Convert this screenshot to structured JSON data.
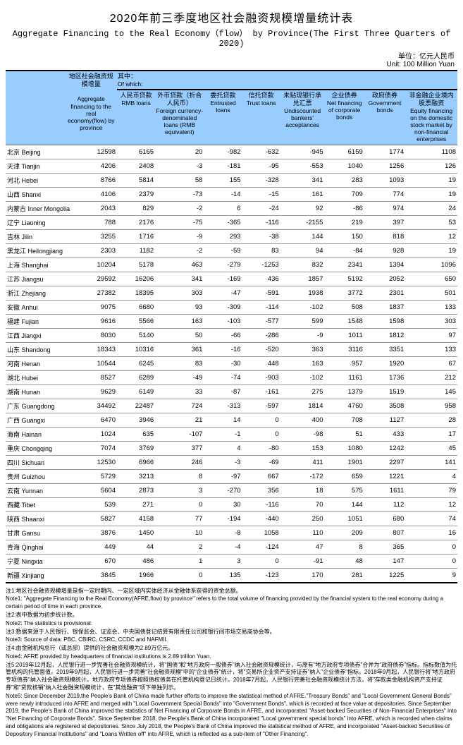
{
  "title_cn": "2020年前三季度地区社会融资规模增量统计表",
  "title_en": "Aggregate Financing to the Real Economy（flow） by Province(The First Three Quarters of 2020)",
  "unit_cn": "单位：亿元人民币",
  "unit_en": "Unit: 100 Million Yuan",
  "header": {
    "prov": "",
    "col1_cn": "地区社会融资规模增量",
    "col1_en": "Aggregate financing to the real economy(flow) by province",
    "ofwhich_cn": "其中：",
    "ofwhich_en": "Of which:",
    "col2_cn": "人民币贷款",
    "col2_en": "RMB loans",
    "col3_cn": "外币贷款（折合人民币）",
    "col3_en": "Foreign currency-denominated loans (RMB equivalent)",
    "col4_cn": "委托贷款",
    "col4_en": "Entrusted loans",
    "col5_cn": "信托贷款",
    "col5_en": "Trust loans",
    "col6_cn": "未贴现银行承兑汇票",
    "col6_en": "Undiscounted bankers' acceptances",
    "col7_cn": "企业债券",
    "col7_en": "Net financing of corporate bonds",
    "col8_cn": "政府债券",
    "col8_en": "Government bonds",
    "col9_cn": "非金融企业境内股票融资",
    "col9_en": "Equity financing on the domestic stock market by non-financial enterprises"
  },
  "rows": [
    {
      "p": "北京 Beijing",
      "v": [
        "12598",
        "6165",
        "20",
        "-982",
        "-632",
        "-945",
        "6159",
        "1774",
        "1108"
      ]
    },
    {
      "p": "天津 Tianjin",
      "v": [
        "4206",
        "2408",
        "-3",
        "-181",
        "-95",
        "-553",
        "1040",
        "1256",
        "126"
      ]
    },
    {
      "p": "河北 Hebei",
      "v": [
        "8766",
        "5814",
        "58",
        "155",
        "-328",
        "341",
        "283",
        "1093",
        "19"
      ]
    },
    {
      "p": "山西 Shanxi",
      "v": [
        "4106",
        "2379",
        "-73",
        "-14",
        "-15",
        "161",
        "709",
        "774",
        "19"
      ]
    },
    {
      "p": "内蒙古 Inner Mongolia",
      "v": [
        "2043",
        "829",
        "-2",
        "6",
        "-24",
        "92",
        "-86",
        "974",
        "24"
      ]
    },
    {
      "p": "辽宁 Liaoning",
      "v": [
        "788",
        "2176",
        "-75",
        "-365",
        "-116",
        "-2155",
        "219",
        "397",
        "53"
      ]
    },
    {
      "p": "吉林 Jilin",
      "v": [
        "3255",
        "1716",
        "-9",
        "293",
        "-38",
        "144",
        "150",
        "818",
        "12"
      ]
    },
    {
      "p": "黑龙江 Heilongjiang",
      "v": [
        "2303",
        "1182",
        "-2",
        "-59",
        "83",
        "94",
        "-84",
        "928",
        "19"
      ]
    },
    {
      "p": "上海 Shanghai",
      "v": [
        "10204",
        "5178",
        "463",
        "-279",
        "-1253",
        "832",
        "2341",
        "1394",
        "1096"
      ]
    },
    {
      "p": "江苏 Jiangsu",
      "v": [
        "29592",
        "16206",
        "341",
        "-169",
        "436",
        "1857",
        "5192",
        "2052",
        "650"
      ]
    },
    {
      "p": "浙江 Zhejiang",
      "v": [
        "27382",
        "18395",
        "303",
        "-47",
        "-591",
        "1938",
        "3772",
        "2301",
        "501"
      ]
    },
    {
      "p": "安徽 Anhui",
      "v": [
        "9075",
        "6680",
        "93",
        "-309",
        "-114",
        "-102",
        "508",
        "1837",
        "133"
      ]
    },
    {
      "p": "福建 Fujian",
      "v": [
        "9616",
        "5566",
        "163",
        "-103",
        "-577",
        "599",
        "1548",
        "1598",
        "303"
      ]
    },
    {
      "p": "江西 Jiangxi",
      "v": [
        "8030",
        "5140",
        "50",
        "-66",
        "-286",
        "-9",
        "1011",
        "1812",
        "97"
      ]
    },
    {
      "p": "山东 Shandong",
      "v": [
        "18343",
        "10316",
        "361",
        "-16",
        "-520",
        "363",
        "3116",
        "3351",
        "133"
      ]
    },
    {
      "p": "河南 Henan",
      "v": [
        "10544",
        "6245",
        "83",
        "-30",
        "448",
        "163",
        "957",
        "1920",
        "67"
      ]
    },
    {
      "p": "湖北 Hubei",
      "v": [
        "8527",
        "6289",
        "-49",
        "-74",
        "-903",
        "-102",
        "1161",
        "1736",
        "212"
      ]
    },
    {
      "p": "湖南 Hunan",
      "v": [
        "9629",
        "6149",
        "33",
        "-87",
        "-161",
        "275",
        "1379",
        "1519",
        "145"
      ]
    },
    {
      "p": "广东 Guangdong",
      "v": [
        "34492",
        "22487",
        "724",
        "-313",
        "-597",
        "1814",
        "4760",
        "3508",
        "958"
      ]
    },
    {
      "p": "广西 Guangxi",
      "v": [
        "6470",
        "3946",
        "21",
        "14",
        "0",
        "400",
        "708",
        "1127",
        "28"
      ]
    },
    {
      "p": "海南 Hainan",
      "v": [
        "1024",
        "635",
        "-107",
        "-1",
        "0",
        "-98",
        "51",
        "433",
        "17"
      ]
    },
    {
      "p": "重庆 Chongqing",
      "v": [
        "7074",
        "3769",
        "377",
        "4",
        "-80",
        "153",
        "1080",
        "1242",
        "45"
      ]
    },
    {
      "p": "四川 Sichuan",
      "v": [
        "12530",
        "6966",
        "246",
        "-3",
        "-69",
        "411",
        "1901",
        "2297",
        "141"
      ]
    },
    {
      "p": "贵州 Guizhou",
      "v": [
        "5729",
        "3213",
        "8",
        "-97",
        "667",
        "-172",
        "659",
        "1221",
        "4"
      ]
    },
    {
      "p": "云南 Yunnan",
      "v": [
        "5604",
        "2873",
        "3",
        "-270",
        "356",
        "18",
        "575",
        "1611",
        "79"
      ]
    },
    {
      "p": "西藏 Tibet",
      "v": [
        "539",
        "271",
        "0",
        "30",
        "-116",
        "70",
        "144",
        "112",
        "12"
      ]
    },
    {
      "p": "陕西 Shaanxi",
      "v": [
        "5827",
        "4158",
        "77",
        "-194",
        "-440",
        "250",
        "1051",
        "680",
        "74"
      ]
    },
    {
      "p": "甘肃 Gansu",
      "v": [
        "3876",
        "1450",
        "10",
        "-8",
        "1058",
        "110",
        "209",
        "807",
        "16"
      ]
    },
    {
      "p": "青海 Qinghai",
      "v": [
        "449",
        "44",
        "2",
        "-4",
        "-124",
        "47",
        "8",
        "365",
        "0"
      ]
    },
    {
      "p": "宁夏 Ningxia",
      "v": [
        "670",
        "486",
        "1",
        "3",
        "0",
        "-91",
        "48",
        "147",
        "0"
      ]
    },
    {
      "p": "新疆 Xinjiang",
      "v": [
        "3845",
        "1966",
        "0",
        "135",
        "-123",
        "170",
        "281",
        "1225",
        "9"
      ]
    }
  ],
  "notes": [
    "注1:地区社会融资规模增量是指一定时期内、一定区域内实体经济从金融体系获得的资金总额。",
    "Note1: \"Aggregate Financing to the Real Economy(AFRE,flow) by province\" refers to the total volume of financing provided by the financial system to the real economy during a certain period of time in each province.",
    "注2:表中数据为初步统计数。",
    "Note2: The statistics is provisional.",
    "注3:数据来源于人民银行、银保监会、证监会、中央国债登记结算有限责任公司和银行间市场交易商协会等。",
    "Note3: Source of data: PBC, CBIRC, CSRC, CCDC and NAFMII.",
    "注4:由金融机构总行（或总部）提供的社会融资规模为2.89万亿元。",
    "Note4: AFRE provided by headquarters of financial institutions is 2.89 trillion Yuan.",
    "注5:2019年12月起，人民银行进一步完善社会融资规模统计，将\"国债\"和\"地方政府一般债券\"纳入社会融资规模统计，与原有\"地方政府专项债券\"合并为\"政府债券\"指标。指标数值为托管机构的托管面值。2019年9月起，人民银行进一步完善\"社会融资规模\"中的\"企业债券\"统计，将\"交易所企业资产支持证券\"纳入\"企业债券\"指标。2018年9月起，人民银行将\"地方政府专项债券\"纳入社会融资规模统计。地方政府专项债券按照债权债务在托管机构登记日统计。2018年7月起，人民银行完善社会融资规模统计方法，将\"存款类金融机构资产支持证券\"和\"贷款核销\"纳入社会融资规模统计，在\"其他融资\"项下单独列示。",
    "Note5: Since December 2019,the People's Bank of China made further efforts to improve the statistical method of AFRE.\"Treasury Bonds\" and \"Local Government General Bonds\" were newly introduced into AFRE and merged with \"Local Government Special Bonds\" into \"Government Bonds\", which is recorded at face value at depositories. Since September 2019, the People's Bank of China improved the statistics of Net Financing of Corporate Bonds in AFRE, and incorporated \"Asset-backed Securities of Non-Financial Enterprises\" into \"Net Financing of Corporate Bonds\". Since September 2018, the People's Bank of China incorporated \"Local government special bonds\" into AFRE, which is recorded when claims and obligations are registered at depositories. Since July 2018, the People's Bank of China improved the statistical method of AFRE, and incorporated \"Asset-backed Securities of Depository Financial Institutions\" and \"Loans Written off\" into AFRE, which is reflected as a sub-item of \"Other Financing\"."
  ]
}
